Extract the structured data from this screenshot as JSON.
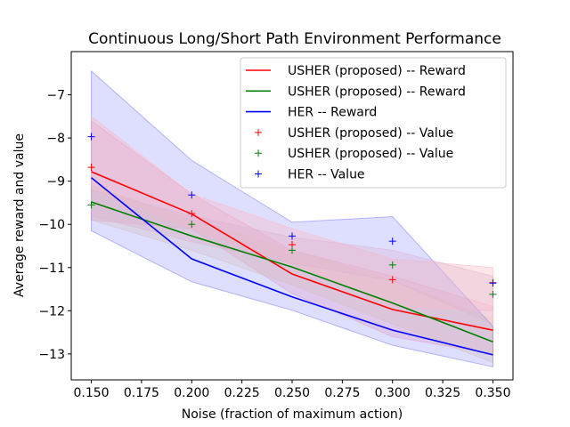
{
  "chart_data": {
    "type": "line",
    "title": "Continuous Long/Short Path Environment Performance",
    "xlabel": "Noise (fraction of maximum action)",
    "ylabel": "Average reward and value",
    "x": [
      0.15,
      0.2,
      0.25,
      0.3,
      0.35
    ],
    "xlim": [
      0.14,
      0.36
    ],
    "ylim": [
      -13.6,
      -6.0
    ],
    "xticks": [
      "0.150",
      "0.175",
      "0.200",
      "0.225",
      "0.250",
      "0.275",
      "0.300",
      "0.325",
      "0.350"
    ],
    "xtick_values": [
      0.15,
      0.175,
      0.2,
      0.225,
      0.25,
      0.275,
      0.3,
      0.325,
      0.35
    ],
    "yticks": [
      "−13",
      "−12",
      "−11",
      "−10",
      "−9",
      "−8",
      "−7"
    ],
    "ytick_values": [
      -13,
      -12,
      -11,
      -10,
      -9,
      -8,
      -7
    ],
    "grid": false,
    "legend_position": "top-right",
    "series": [
      {
        "name": "USHER (proposed) -- Reward",
        "kind": "line",
        "color": "#ff0000",
        "values": [
          -8.78,
          -9.76,
          -11.15,
          -11.97,
          -12.45
        ],
        "band_low": [
          -9.9,
          -10.1,
          -11.6,
          -12.6,
          -13.0
        ],
        "band_high": [
          -7.6,
          -9.3,
          -10.6,
          -11.2,
          -11.9
        ],
        "band_color": "#ffb6c1"
      },
      {
        "name": "USHER (proposed) -- Reward",
        "kind": "line",
        "color": "#008000",
        "values": [
          -9.48,
          -10.27,
          -10.99,
          -11.82,
          -12.72
        ],
        "band_low": [
          -9.9,
          -10.6,
          -11.4,
          -12.3,
          -13.2
        ],
        "band_high": [
          -9.1,
          -9.9,
          -10.6,
          -11.3,
          -12.2
        ],
        "band_color": "#f5deb3"
      },
      {
        "name": "HER -- Reward",
        "kind": "line",
        "color": "#0000ff",
        "values": [
          -8.92,
          -10.8,
          -11.68,
          -12.45,
          -13.02
        ],
        "band_low": [
          -10.15,
          -11.33,
          -11.99,
          -12.8,
          -13.3
        ],
        "band_high": [
          -6.45,
          -8.52,
          -9.95,
          -9.82,
          -12.36
        ],
        "band_color": "#0000ff"
      },
      {
        "name": "USHER (proposed) -- Value",
        "kind": "marker",
        "color": "#ff0000",
        "values": [
          -8.68,
          -9.75,
          -10.47,
          -11.28,
          -11.35
        ],
        "band_low": [
          -9.2,
          -10.1,
          -10.9,
          -11.9,
          -12.0
        ],
        "band_high": [
          -7.5,
          -9.3,
          -10.1,
          -10.8,
          -11.0
        ],
        "band_color": "#ffb6c1"
      },
      {
        "name": "USHER (proposed) -- Value",
        "kind": "marker",
        "color": "#008000",
        "values": [
          -9.55,
          -10.0,
          -10.6,
          -10.94,
          -11.62
        ],
        "band_low": [
          -9.8,
          -10.4,
          -10.9,
          -11.3,
          -12.3
        ],
        "band_high": [
          -9.2,
          -9.8,
          -10.3,
          -10.6,
          -11.2
        ],
        "band_color": "#dcb4d2"
      },
      {
        "name": "HER -- Value",
        "kind": "marker",
        "color": "#0000ff",
        "values": [
          -7.97,
          -9.32,
          -10.27,
          -10.39,
          -11.36
        ],
        "band_low": null,
        "band_high": null,
        "band_color": null
      }
    ]
  }
}
